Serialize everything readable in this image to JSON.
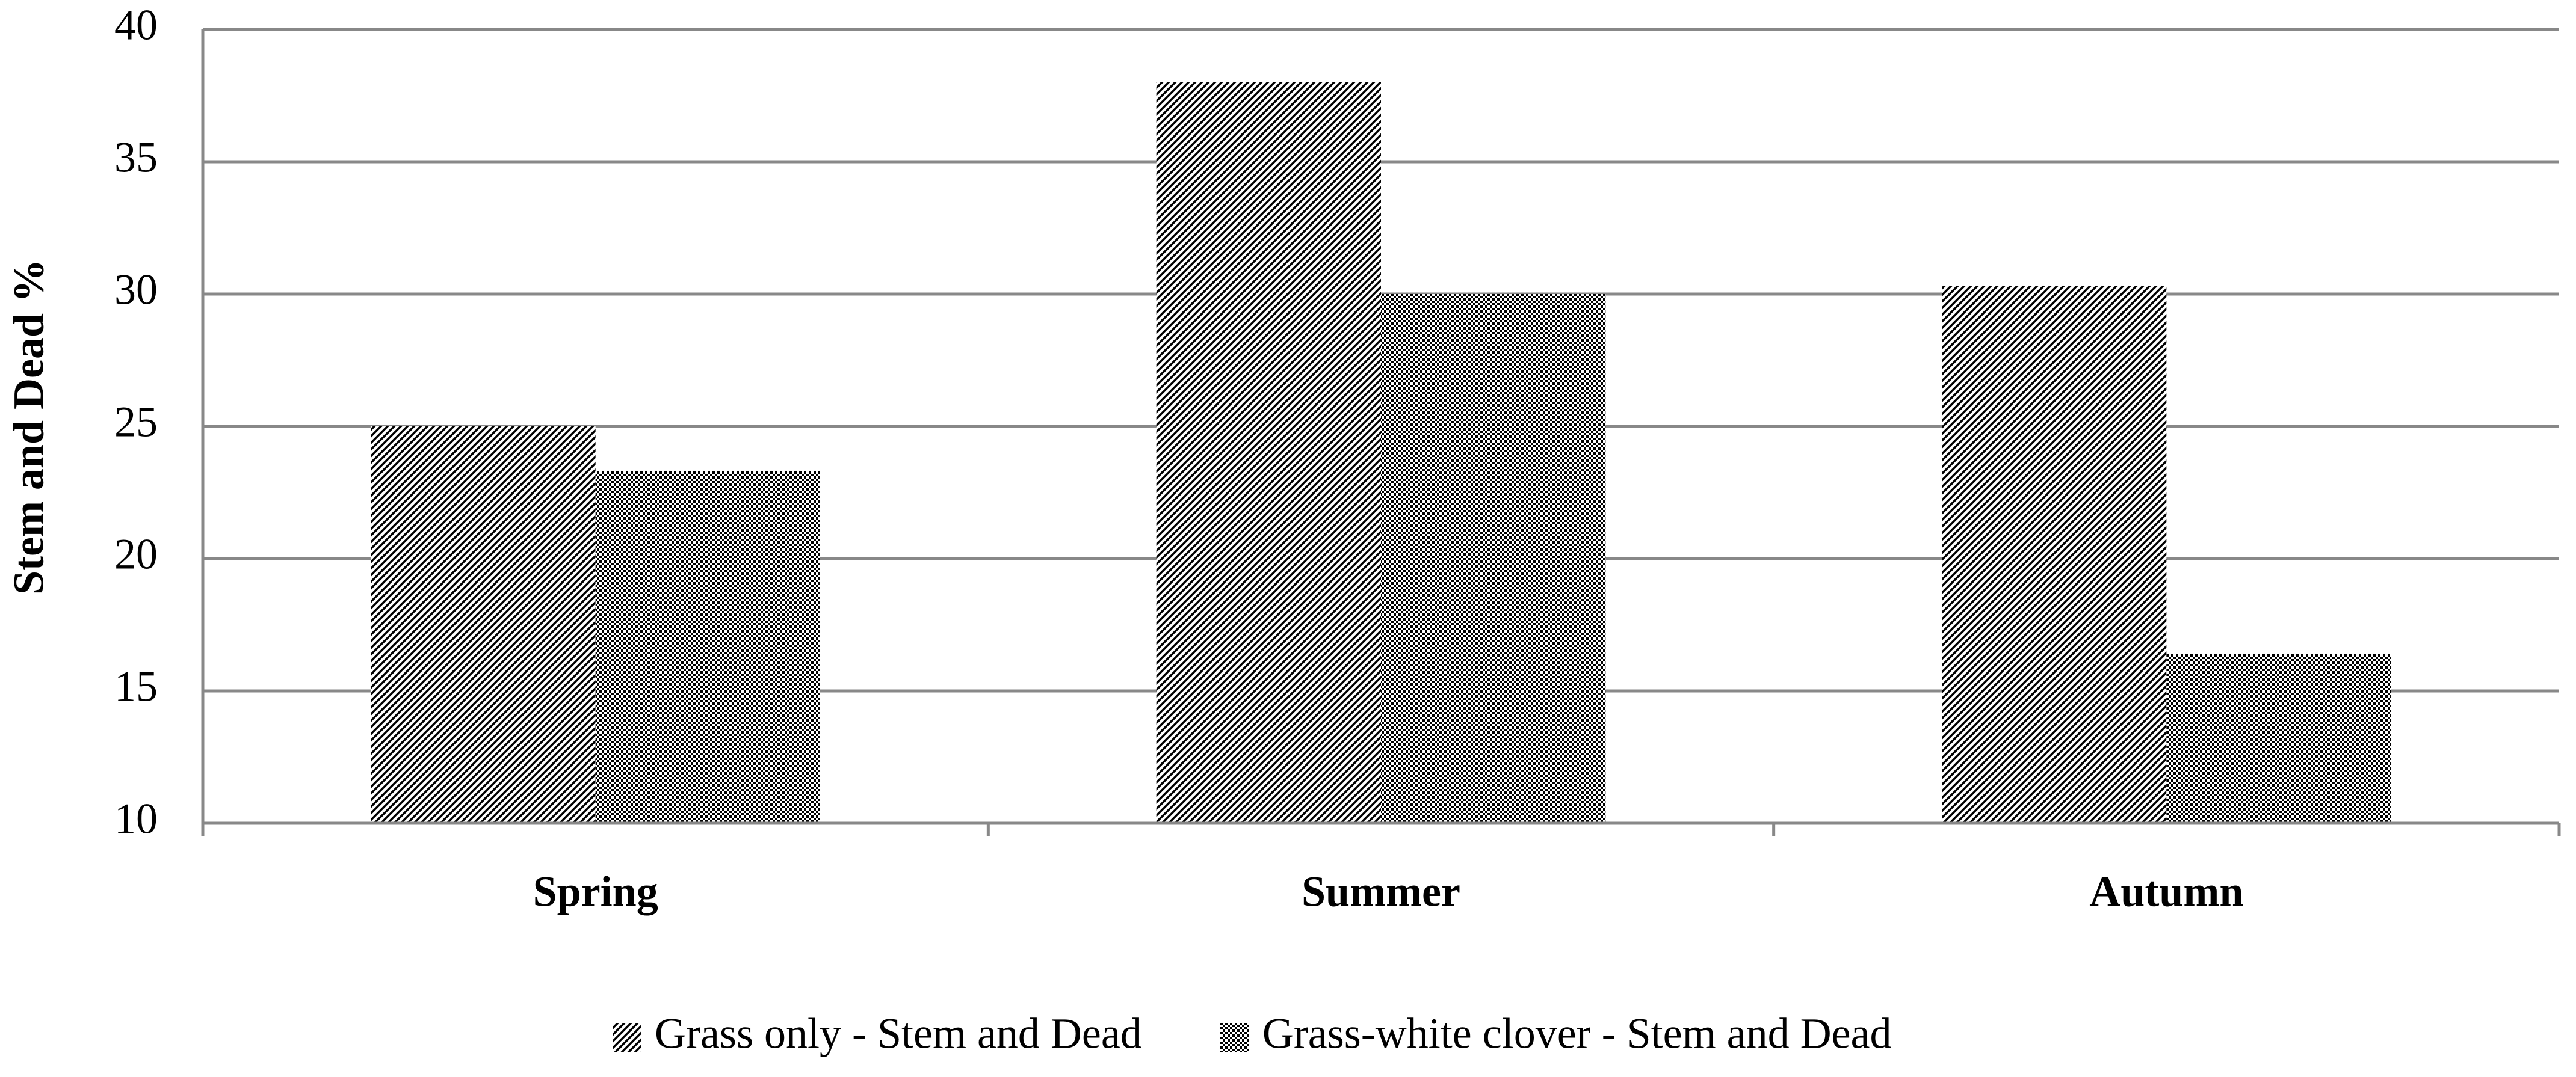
{
  "chart_data": {
    "type": "bar",
    "y_label": "Stem and Dead %",
    "categories": [
      "Spring",
      "Summer",
      "Autumn"
    ],
    "series": [
      {
        "name": "Grass only - Stem and Dead",
        "color": "#000000",
        "pattern": "diagonal",
        "values": [
          25,
          38,
          30.3
        ]
      },
      {
        "name": "Grass-white clover - Stem and Dead",
        "color": "#000000",
        "pattern": "checker",
        "values": [
          23.3,
          30,
          16.4
        ]
      }
    ],
    "ylim": [
      10,
      40
    ],
    "yticks": [
      10,
      15,
      20,
      25,
      30,
      35,
      40
    ],
    "grid": true,
    "legend": "bottom"
  }
}
